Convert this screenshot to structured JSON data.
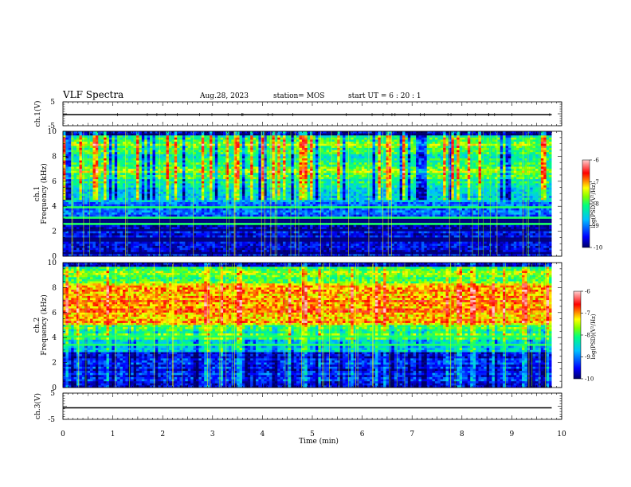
{
  "header": {
    "title": "VLF Spectra",
    "date": "Aug.28, 2023",
    "station": "station= MOS",
    "start_ut": "start  UT  =   6  : 20 : 1"
  },
  "chart_data": [
    {
      "type": "line",
      "panel": "ch1-waveform",
      "ylabel": "ch.1(V)",
      "ylim": [
        -5,
        5
      ],
      "y_ticks": [
        "5",
        "-5"
      ],
      "x": [
        0,
        9.8
      ],
      "values": [
        0,
        0
      ]
    },
    {
      "type": "heatmap",
      "panel": "ch1-spectrogram",
      "ylabel_channel": "ch.1",
      "ylabel": "Frequency (kHz)",
      "ylim": [
        0,
        10
      ],
      "y_ticks": [
        "0",
        "2",
        "4",
        "6",
        "8",
        "10"
      ],
      "xlim": [
        0,
        9.8
      ],
      "colorbar": {
        "label": "log(PSD)(V²/Hz)",
        "range": [
          -10,
          -6
        ],
        "ticks": [
          "-6",
          "-7",
          "-8",
          "-9",
          "-10"
        ]
      }
    },
    {
      "type": "heatmap",
      "panel": "ch2-spectrogram",
      "ylabel_channel": "ch.2",
      "ylabel": "Frequency (kHz)",
      "ylim": [
        0,
        10
      ],
      "y_ticks": [
        "0",
        "2",
        "4",
        "6",
        "8",
        "10"
      ],
      "xlim": [
        0,
        9.8
      ],
      "colorbar": {
        "label": "log(PSD)(V²/Hz)",
        "range": [
          -10,
          -6
        ],
        "ticks": [
          "-6",
          "-7",
          "-8",
          "-9",
          "-10"
        ]
      }
    },
    {
      "type": "line",
      "panel": "ch3-waveform",
      "ylabel": "ch.3(V)",
      "ylim": [
        -5,
        5
      ],
      "y_ticks": [
        "5",
        "-5"
      ],
      "x": [
        0,
        9.8
      ],
      "values": [
        0,
        0
      ]
    }
  ],
  "x_axis": {
    "label": "Time  (min)",
    "ticks": [
      "0",
      "1",
      "2",
      "3",
      "4",
      "5",
      "6",
      "7",
      "8",
      "9",
      "10"
    ],
    "range": [
      0,
      10
    ]
  },
  "colors": {
    "background": "#ffffff",
    "axes": "#000000",
    "colormap": [
      "#000066",
      "#0000ff",
      "#00c0ff",
      "#00ff80",
      "#80ff00",
      "#ffff00",
      "#ff0000",
      "#ffd0d0"
    ]
  }
}
